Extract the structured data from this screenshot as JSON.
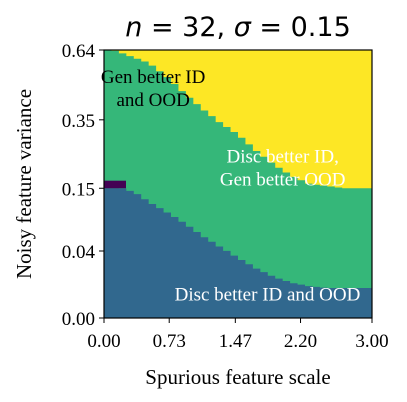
{
  "chart_data": {
    "type": "heatmap",
    "title": "n = 32, σ = 0.15",
    "title_parts": {
      "n": "32",
      "sigma": "0.15"
    },
    "xlabel": "Spurious feature scale",
    "ylabel": "Noisy feature variance",
    "x_ticks": [
      "0.00",
      "0.73",
      "1.47",
      "2.20",
      "3.00"
    ],
    "x_tick_values": [
      0.0,
      0.73,
      1.47,
      2.2,
      3.0
    ],
    "y_ticks": [
      "0.00",
      "0.04",
      "0.15",
      "0.35",
      "0.64"
    ],
    "y_tick_values": [
      0.0,
      0.04,
      0.15,
      0.35,
      0.64
    ],
    "xlim": [
      0.0,
      3.0
    ],
    "y_scale": "sqrt",
    "ylim": [
      0.0,
      0.64
    ],
    "grid": false,
    "regions": [
      {
        "label": "Gen better ID and OOD",
        "label_lines": [
          "Gen better ID",
          "and OOD"
        ],
        "color": "#fde725",
        "description_of_extent": "upper-left: small spurious scale, high noisy variance"
      },
      {
        "label": "Disc better ID, Gen better OOD",
        "label_lines": [
          "Disc better ID,",
          "Gen better OOD"
        ],
        "color": "#35b779",
        "description_of_extent": "middle / right band"
      },
      {
        "label": "Disc better ID and OOD",
        "label_lines": [
          "Disc better ID and OOD"
        ],
        "color": "#31688e",
        "description_of_extent": "bottom: low noisy variance"
      },
      {
        "label": "",
        "color": "#440154",
        "description_of_extent": "tiny sliver at x≈0, y≈0.15"
      }
    ],
    "boundaries": {
      "gen_vs_disc_ood": [
        [
          0.0,
          0.64
        ],
        [
          0.1,
          0.64
        ],
        [
          0.3,
          0.61
        ],
        [
          0.5,
          0.58
        ],
        [
          0.7,
          0.52
        ],
        [
          0.9,
          0.45
        ],
        [
          1.1,
          0.39
        ],
        [
          1.3,
          0.34
        ],
        [
          1.5,
          0.3
        ],
        [
          1.7,
          0.25
        ],
        [
          1.9,
          0.21
        ],
        [
          2.1,
          0.18
        ],
        [
          2.3,
          0.16
        ],
        [
          2.5,
          0.155
        ],
        [
          2.7,
          0.15
        ],
        [
          3.0,
          0.15
        ]
      ],
      "disc_id_and_ood_top": [
        [
          0.0,
          0.15
        ],
        [
          0.2,
          0.15
        ],
        [
          0.35,
          0.14
        ],
        [
          0.5,
          0.12
        ],
        [
          0.7,
          0.1
        ],
        [
          0.9,
          0.08
        ],
        [
          1.1,
          0.06
        ],
        [
          1.3,
          0.045
        ],
        [
          1.5,
          0.032
        ],
        [
          1.7,
          0.022
        ],
        [
          1.9,
          0.015
        ],
        [
          2.1,
          0.011
        ],
        [
          2.3,
          0.009
        ],
        [
          2.5,
          0.008
        ],
        [
          2.7,
          0.008
        ],
        [
          3.0,
          0.008
        ]
      ]
    }
  }
}
